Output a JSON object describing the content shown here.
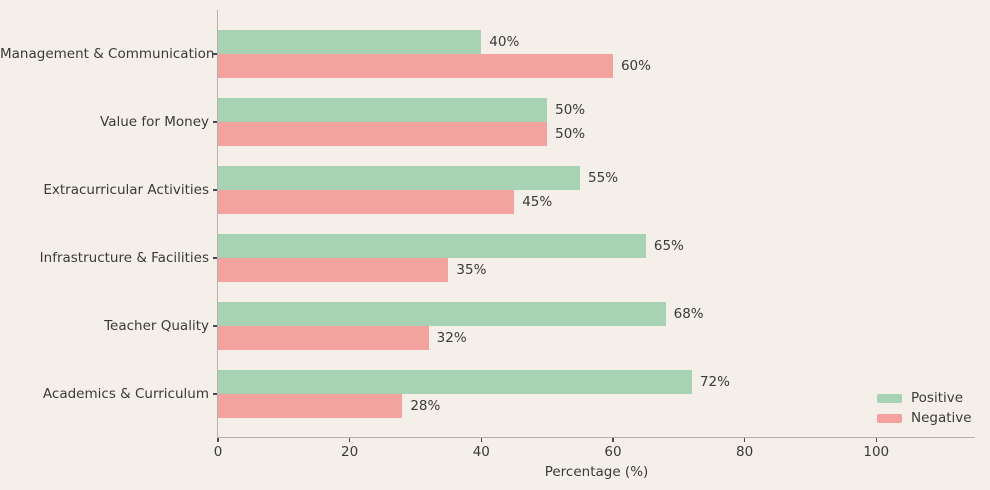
{
  "chart_data": {
    "type": "bar",
    "orientation": "horizontal",
    "title": "",
    "xlabel": "Percentage (%)",
    "ylabel": "",
    "categories": [
      "Management & Communication",
      "Value for Money",
      "Extracurricular Activities",
      "Infrastructure & Facilities",
      "Teacher Quality",
      "Academics & Curriculum"
    ],
    "series": [
      {
        "name": "Positive",
        "color": "#a7d3b4",
        "values": [
          40,
          50,
          55,
          65,
          68,
          72
        ]
      },
      {
        "name": "Negative",
        "color": "#f4a29d",
        "values": [
          60,
          50,
          45,
          35,
          32,
          28
        ]
      }
    ],
    "value_suffix": "%",
    "xticks": [
      0,
      20,
      40,
      60,
      80,
      100
    ],
    "xlim": [
      0,
      115
    ],
    "grid": false,
    "legend": {
      "position": "lower right",
      "entries": [
        "Positive",
        "Negative"
      ]
    }
  },
  "colors": {
    "background": "#f4efe9",
    "text": "#3a3a3a",
    "spine": "#b6b0aa",
    "tick": "#4a4a4a",
    "positive": "#a7d3b4",
    "negative": "#f4a29d"
  }
}
